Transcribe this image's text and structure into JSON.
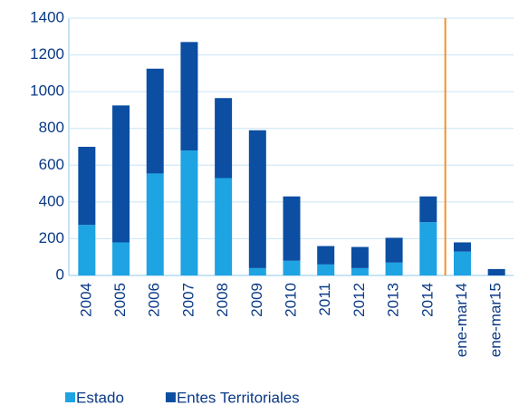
{
  "chart_data": {
    "type": "stacked_bar",
    "categories": [
      "2004",
      "2005",
      "2006",
      "2007",
      "2008",
      "2009",
      "2010",
      "2011",
      "2012",
      "2013",
      "2014",
      "ene-mar14",
      "ene-mar15"
    ],
    "series": [
      {
        "name": "Estado",
        "color": "#1ea3e3",
        "values": [
          275,
          180,
          555,
          680,
          530,
          40,
          80,
          60,
          40,
          70,
          290,
          130,
          0
        ]
      },
      {
        "name": "Entes Territoriales",
        "color": "#0b4ea2",
        "values": [
          425,
          745,
          570,
          590,
          435,
          750,
          350,
          100,
          115,
          135,
          140,
          50,
          35
        ]
      }
    ],
    "ylim": [
      0,
      1400
    ],
    "yticks": [
      0,
      200,
      400,
      600,
      800,
      1000,
      1200,
      1400
    ],
    "grid": true
  }
}
